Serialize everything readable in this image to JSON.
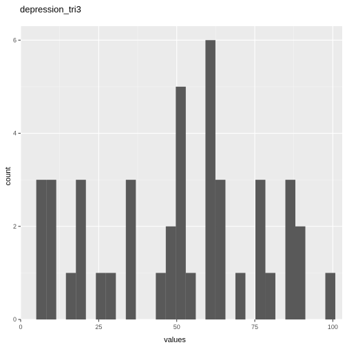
{
  "chart_data": {
    "type": "bar",
    "title": "depression_tri3",
    "xlabel": "values",
    "ylabel": "count",
    "xlim": [
      0,
      103
    ],
    "ylim": [
      0,
      6.3
    ],
    "x_ticks": [
      0,
      25,
      50,
      75,
      100
    ],
    "y_ticks": [
      0,
      2,
      4,
      6
    ],
    "bin_width": 3.2,
    "grid": true,
    "bins": [
      {
        "x": 6.6,
        "count": 3
      },
      {
        "x": 9.8,
        "count": 3
      },
      {
        "x": 16.1,
        "count": 1
      },
      {
        "x": 19.3,
        "count": 3
      },
      {
        "x": 25.7,
        "count": 1
      },
      {
        "x": 28.9,
        "count": 1
      },
      {
        "x": 35.3,
        "count": 3
      },
      {
        "x": 44.9,
        "count": 1
      },
      {
        "x": 48.1,
        "count": 2
      },
      {
        "x": 51.3,
        "count": 5
      },
      {
        "x": 54.5,
        "count": 1
      },
      {
        "x": 60.8,
        "count": 6
      },
      {
        "x": 64.0,
        "count": 3
      },
      {
        "x": 70.4,
        "count": 1
      },
      {
        "x": 76.8,
        "count": 3
      },
      {
        "x": 80.0,
        "count": 1
      },
      {
        "x": 86.4,
        "count": 3
      },
      {
        "x": 89.6,
        "count": 2
      },
      {
        "x": 99.2,
        "count": 1
      }
    ],
    "colors": {
      "panel": "#ebebeb",
      "grid_major": "#ffffff",
      "grid_minor": "#f5f5f5",
      "bar": "#595959",
      "tick": "#333333"
    }
  }
}
